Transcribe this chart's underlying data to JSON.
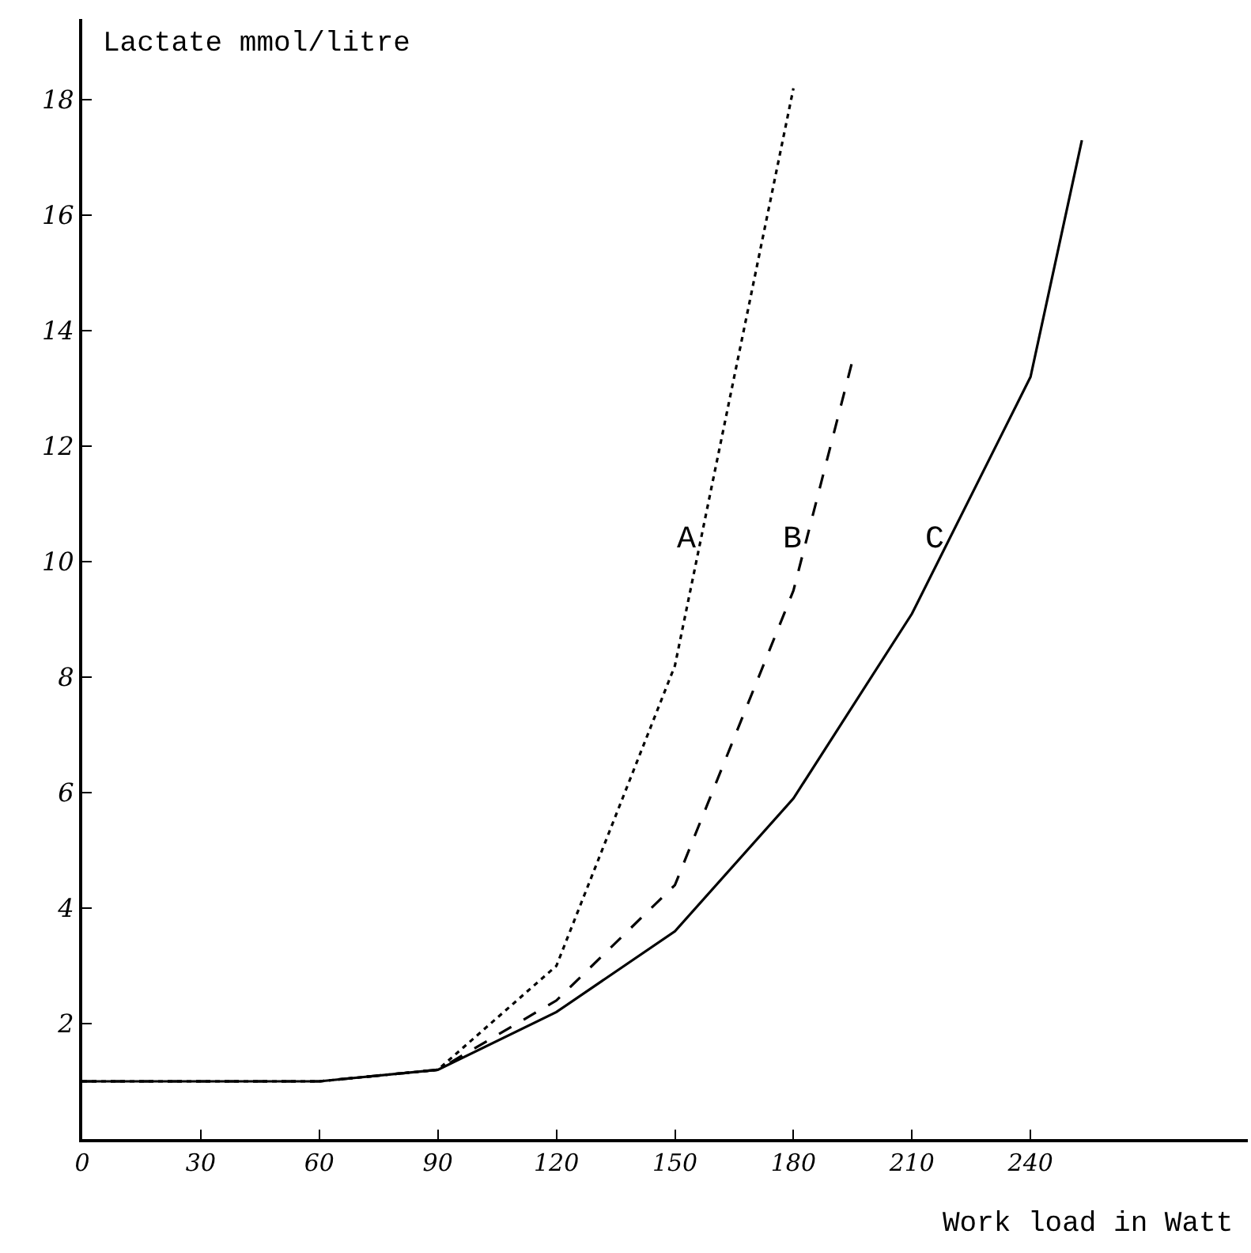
{
  "chart_data": {
    "type": "line",
    "ylabel": "Lactate mmol/litre",
    "xlabel": "Work load in Watt",
    "xlim": [
      0,
      295
    ],
    "xticks": [
      0,
      30,
      60,
      90,
      120,
      150,
      180,
      210,
      240
    ],
    "ylim": [
      0,
      19.4
    ],
    "yticks": [
      2,
      4,
      6,
      8,
      10,
      12,
      14,
      16,
      18
    ],
    "grid": false,
    "legend": false,
    "marker": "none",
    "series": [
      {
        "name": "A",
        "color": "#000000",
        "line_style": "dotted",
        "x": [
          0,
          60,
          90,
          120,
          150,
          180
        ],
        "values": [
          1.0,
          1.0,
          1.2,
          3.0,
          8.2,
          18.2
        ]
      },
      {
        "name": "B",
        "color": "#000000",
        "line_style": "dashed",
        "x": [
          0,
          60,
          90,
          120,
          150,
          180,
          195
        ],
        "values": [
          1.0,
          1.0,
          1.2,
          2.4,
          4.4,
          9.5,
          13.5
        ]
      },
      {
        "name": "C",
        "color": "#000000",
        "line_style": "solid",
        "x": [
          0,
          60,
          90,
          120,
          150,
          180,
          210,
          240,
          253
        ],
        "values": [
          1.0,
          1.0,
          1.2,
          2.2,
          3.6,
          5.9,
          9.1,
          13.2,
          17.3
        ]
      }
    ]
  }
}
